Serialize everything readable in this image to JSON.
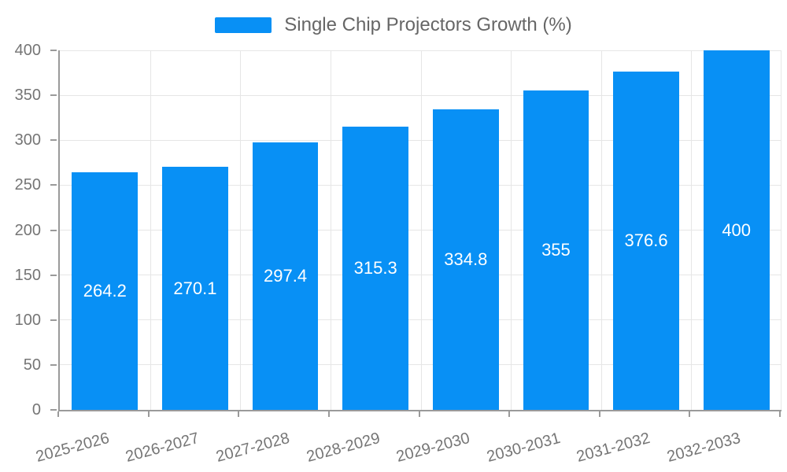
{
  "legend": {
    "label": "Single Chip Projectors Growth (%)"
  },
  "colors": {
    "bar": "#0890f5",
    "axis_line": "#9a9a9a",
    "grid_line": "#e6e6e6",
    "axis_label": "#757575",
    "legend_text": "#666666",
    "value_label": "#ffffff",
    "background": "#ffffff"
  },
  "chart_data": {
    "type": "bar",
    "title": "",
    "legend_entries": [
      "Single Chip Projectors Growth (%)"
    ],
    "categories": [
      "2025-2026",
      "2026-2027",
      "2027-2028",
      "2028-2029",
      "2029-2030",
      "2030-2031",
      "2031-2032",
      "2032-2033"
    ],
    "series": [
      {
        "name": "Single Chip Projectors Growth (%)",
        "values": [
          264.2,
          270.1,
          297.4,
          315.3,
          334.8,
          355,
          376.6,
          400
        ]
      }
    ],
    "xlabel": "",
    "ylabel": "",
    "ylim": [
      0,
      400
    ],
    "ytick_step": 50,
    "yticks": [
      0,
      50,
      100,
      150,
      200,
      250,
      300,
      350,
      400
    ],
    "grid": true,
    "legend_position": "top",
    "value_labels": "inside-center",
    "x_label_rotation_deg": -15
  }
}
